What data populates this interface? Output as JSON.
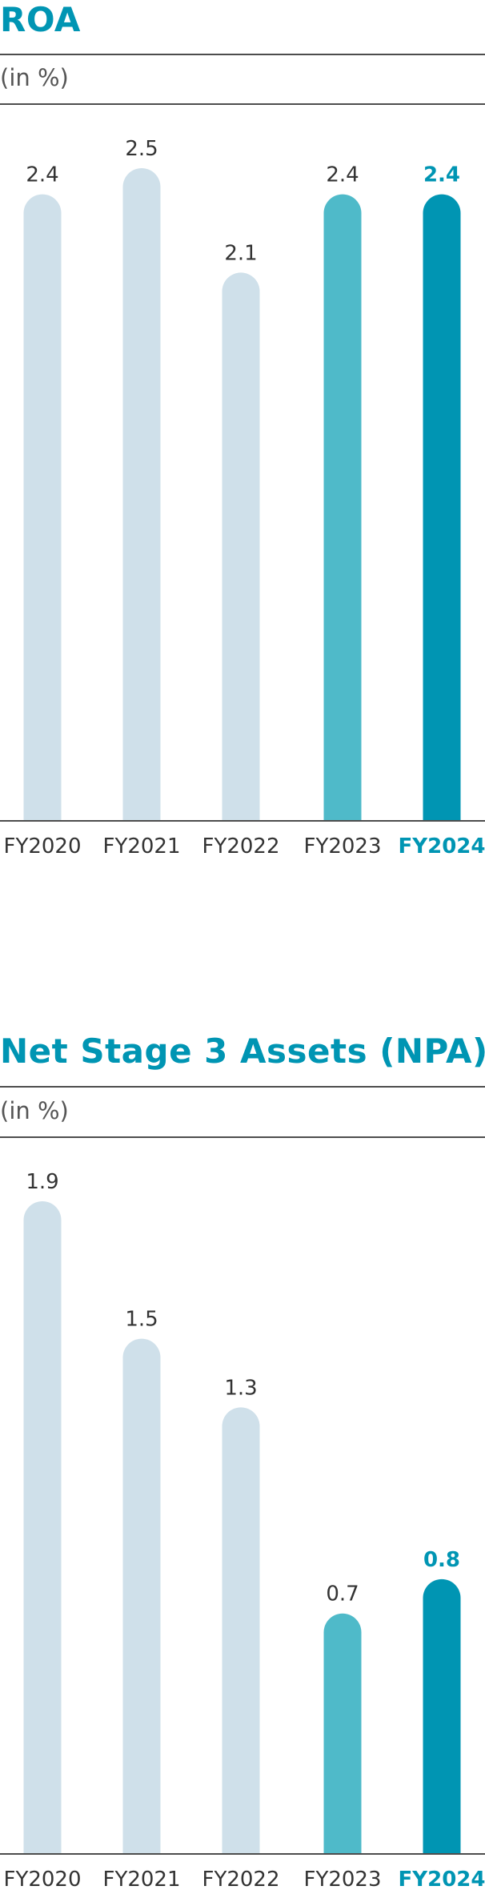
{
  "colors": {
    "title": "#0095b3",
    "past": "#cfe0ea",
    "prev": "#4fbac9",
    "current": "#0095b3",
    "text": "#333333",
    "axis": "#4d4d4d"
  },
  "chart_data": [
    {
      "type": "bar",
      "title": "ROA",
      "subtitle": "(in %)",
      "categories": [
        "FY2020",
        "FY2021",
        "FY2022",
        "FY2023",
        "FY2024"
      ],
      "values": [
        2.4,
        2.5,
        2.1,
        2.4,
        2.4
      ],
      "value_labels": [
        "2.4",
        "2.5",
        "2.1",
        "2.4",
        "2.4"
      ],
      "bar_colors": [
        "#cfe0ea",
        "#cfe0ea",
        "#cfe0ea",
        "#4fbac9",
        "#0095b3"
      ],
      "highlight_index": 4,
      "ylim": [
        0,
        2.5
      ],
      "grid": false,
      "xlabel": "",
      "ylabel": ""
    },
    {
      "type": "bar",
      "title": "Net Stage 3 Assets (NPA)",
      "subtitle": "(in %)",
      "categories": [
        "FY2020",
        "FY2021",
        "FY2022",
        "FY2023",
        "FY2024"
      ],
      "values": [
        1.9,
        1.5,
        1.3,
        0.7,
        0.8
      ],
      "value_labels": [
        "1.9",
        "1.5",
        "1.3",
        "0.7",
        "0.8"
      ],
      "bar_colors": [
        "#cfe0ea",
        "#cfe0ea",
        "#cfe0ea",
        "#4fbac9",
        "#0095b3"
      ],
      "highlight_index": 4,
      "ylim": [
        0,
        1.9
      ],
      "grid": false,
      "xlabel": "",
      "ylabel": ""
    }
  ]
}
